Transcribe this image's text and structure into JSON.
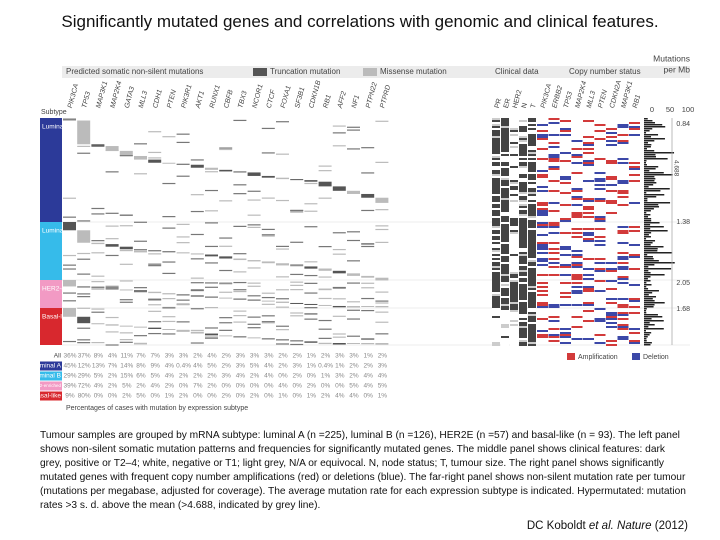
{
  "title": "Significantly mutated genes and correlations with genomic and clinical features.",
  "figure": {
    "mutation_header": "Predicted somatic non-silent mutations",
    "truncation_legend": "Truncation mutation",
    "missense_legend": "Missense mutation",
    "clinical_header": "Clinical data",
    "copy_number_header": "Copy number status",
    "rate_header": [
      "Mutations",
      "per Mb"
    ],
    "rate_ticks": [
      "0",
      "50",
      "100"
    ],
    "subtype_header": "Subtype",
    "genes": [
      "PIK3CA",
      "TP53",
      "MAP3K1",
      "MAP2K4",
      "GATA3",
      "MLL3",
      "CDH1",
      "PTEN",
      "PIK3R1",
      "AKT1",
      "RUNX1",
      "CBFB",
      "TBX3",
      "NCOR1",
      "CTCF",
      "FOXA1",
      "SF3B1",
      "CDKN1B",
      "RB1",
      "AFF2",
      "NF1",
      "PTPN22",
      "PTPRD"
    ],
    "clinical": [
      "PR",
      "ER",
      "HER2",
      "N",
      "T"
    ],
    "copy_number_genes": [
      "PIK3CA",
      "ERBB2",
      "TP53",
      "MAP2K4",
      "MLL3",
      "PTEN",
      "CDKN2A",
      "MAP3K1",
      "RB1"
    ],
    "subtypes": [
      "Luminal A",
      "Luminal B",
      "HER2-enriched",
      "Basal-like"
    ],
    "rate_labels": [
      "0.84",
      "1.38",
      "2.05",
      "1.68"
    ],
    "hypermutated_label": "4.688",
    "amplification": "Amplification",
    "deletion": "Deletion",
    "table": {
      "rows": [
        {
          "label": "All",
          "values": [
            "36%",
            "37%",
            "8%",
            "4%",
            "11%",
            "7%",
            "7%",
            "3%",
            "3%",
            "2%",
            "4%",
            "2%",
            "3%",
            "3%",
            "3%",
            "2%",
            "2%",
            "1%",
            "2%",
            "3%",
            "3%",
            "1%",
            "2%"
          ]
        },
        {
          "label": "Luminal A",
          "values": [
            "45%",
            "12%",
            "13%",
            "7%",
            "14%",
            "8%",
            "9%",
            "4%",
            "0.4%",
            "4%",
            "5%",
            "2%",
            "3%",
            "5%",
            "4%",
            "2%",
            "3%",
            "1%",
            "0.4%",
            "1%",
            "2%",
            "2%",
            "3%"
          ]
        },
        {
          "label": "Luminal B",
          "values": [
            "29%",
            "29%",
            "5%",
            "2%",
            "15%",
            "6%",
            "5%",
            "4%",
            "2%",
            "2%",
            "2%",
            "3%",
            "4%",
            "2%",
            "4%",
            "0%",
            "2%",
            "0%",
            "1%",
            "3%",
            "2%",
            "4%",
            "4%"
          ]
        },
        {
          "label": "HER2-enriched",
          "values": [
            "39%",
            "72%",
            "4%",
            "2%",
            "5%",
            "2%",
            "4%",
            "2%",
            "0%",
            "7%",
            "2%",
            "0%",
            "0%",
            "0%",
            "0%",
            "4%",
            "0%",
            "2%",
            "0%",
            "0%",
            "5%",
            "4%",
            "5%"
          ]
        },
        {
          "label": "Basal-like",
          "values": [
            "9%",
            "80%",
            "0%",
            "0%",
            "2%",
            "5%",
            "0%",
            "1%",
            "2%",
            "0%",
            "0%",
            "2%",
            "0%",
            "2%",
            "0%",
            "1%",
            "0%",
            "1%",
            "2%",
            "4%",
            "4%",
            "0%",
            "1%"
          ]
        }
      ],
      "footer": "Percentages of cases with mutation by expression subtype"
    }
  },
  "caption": "Tumour samples are grouped by mRNA subtype: luminal A (n =225), luminal B (n =126), HER2E (n =57) and basal-like (n = 93). The left panel shows non-silent somatic mutation patterns and frequencies for significantly mutated genes. The middle panel shows clinical features: dark grey, positive or T2–4; white, negative or T1; light grey, N/A or equivocal. N, node status; T, tumour size. The right panel shows significantly mutated genes with frequent copy number amplifications (red) or deletions (blue). The far-right panel shows non-silent mutation rate per tumour (mutations per megabase, adjusted for coverage). The average mutation rate for each expression subtype is indicated. Hypermutated: mutation rates >3 s. d. above the mean (>4.688, indicated by grey line).",
  "citation": {
    "author": "DC Koboldt",
    "journal": "et al. Nature",
    "year": "(2012)"
  }
}
